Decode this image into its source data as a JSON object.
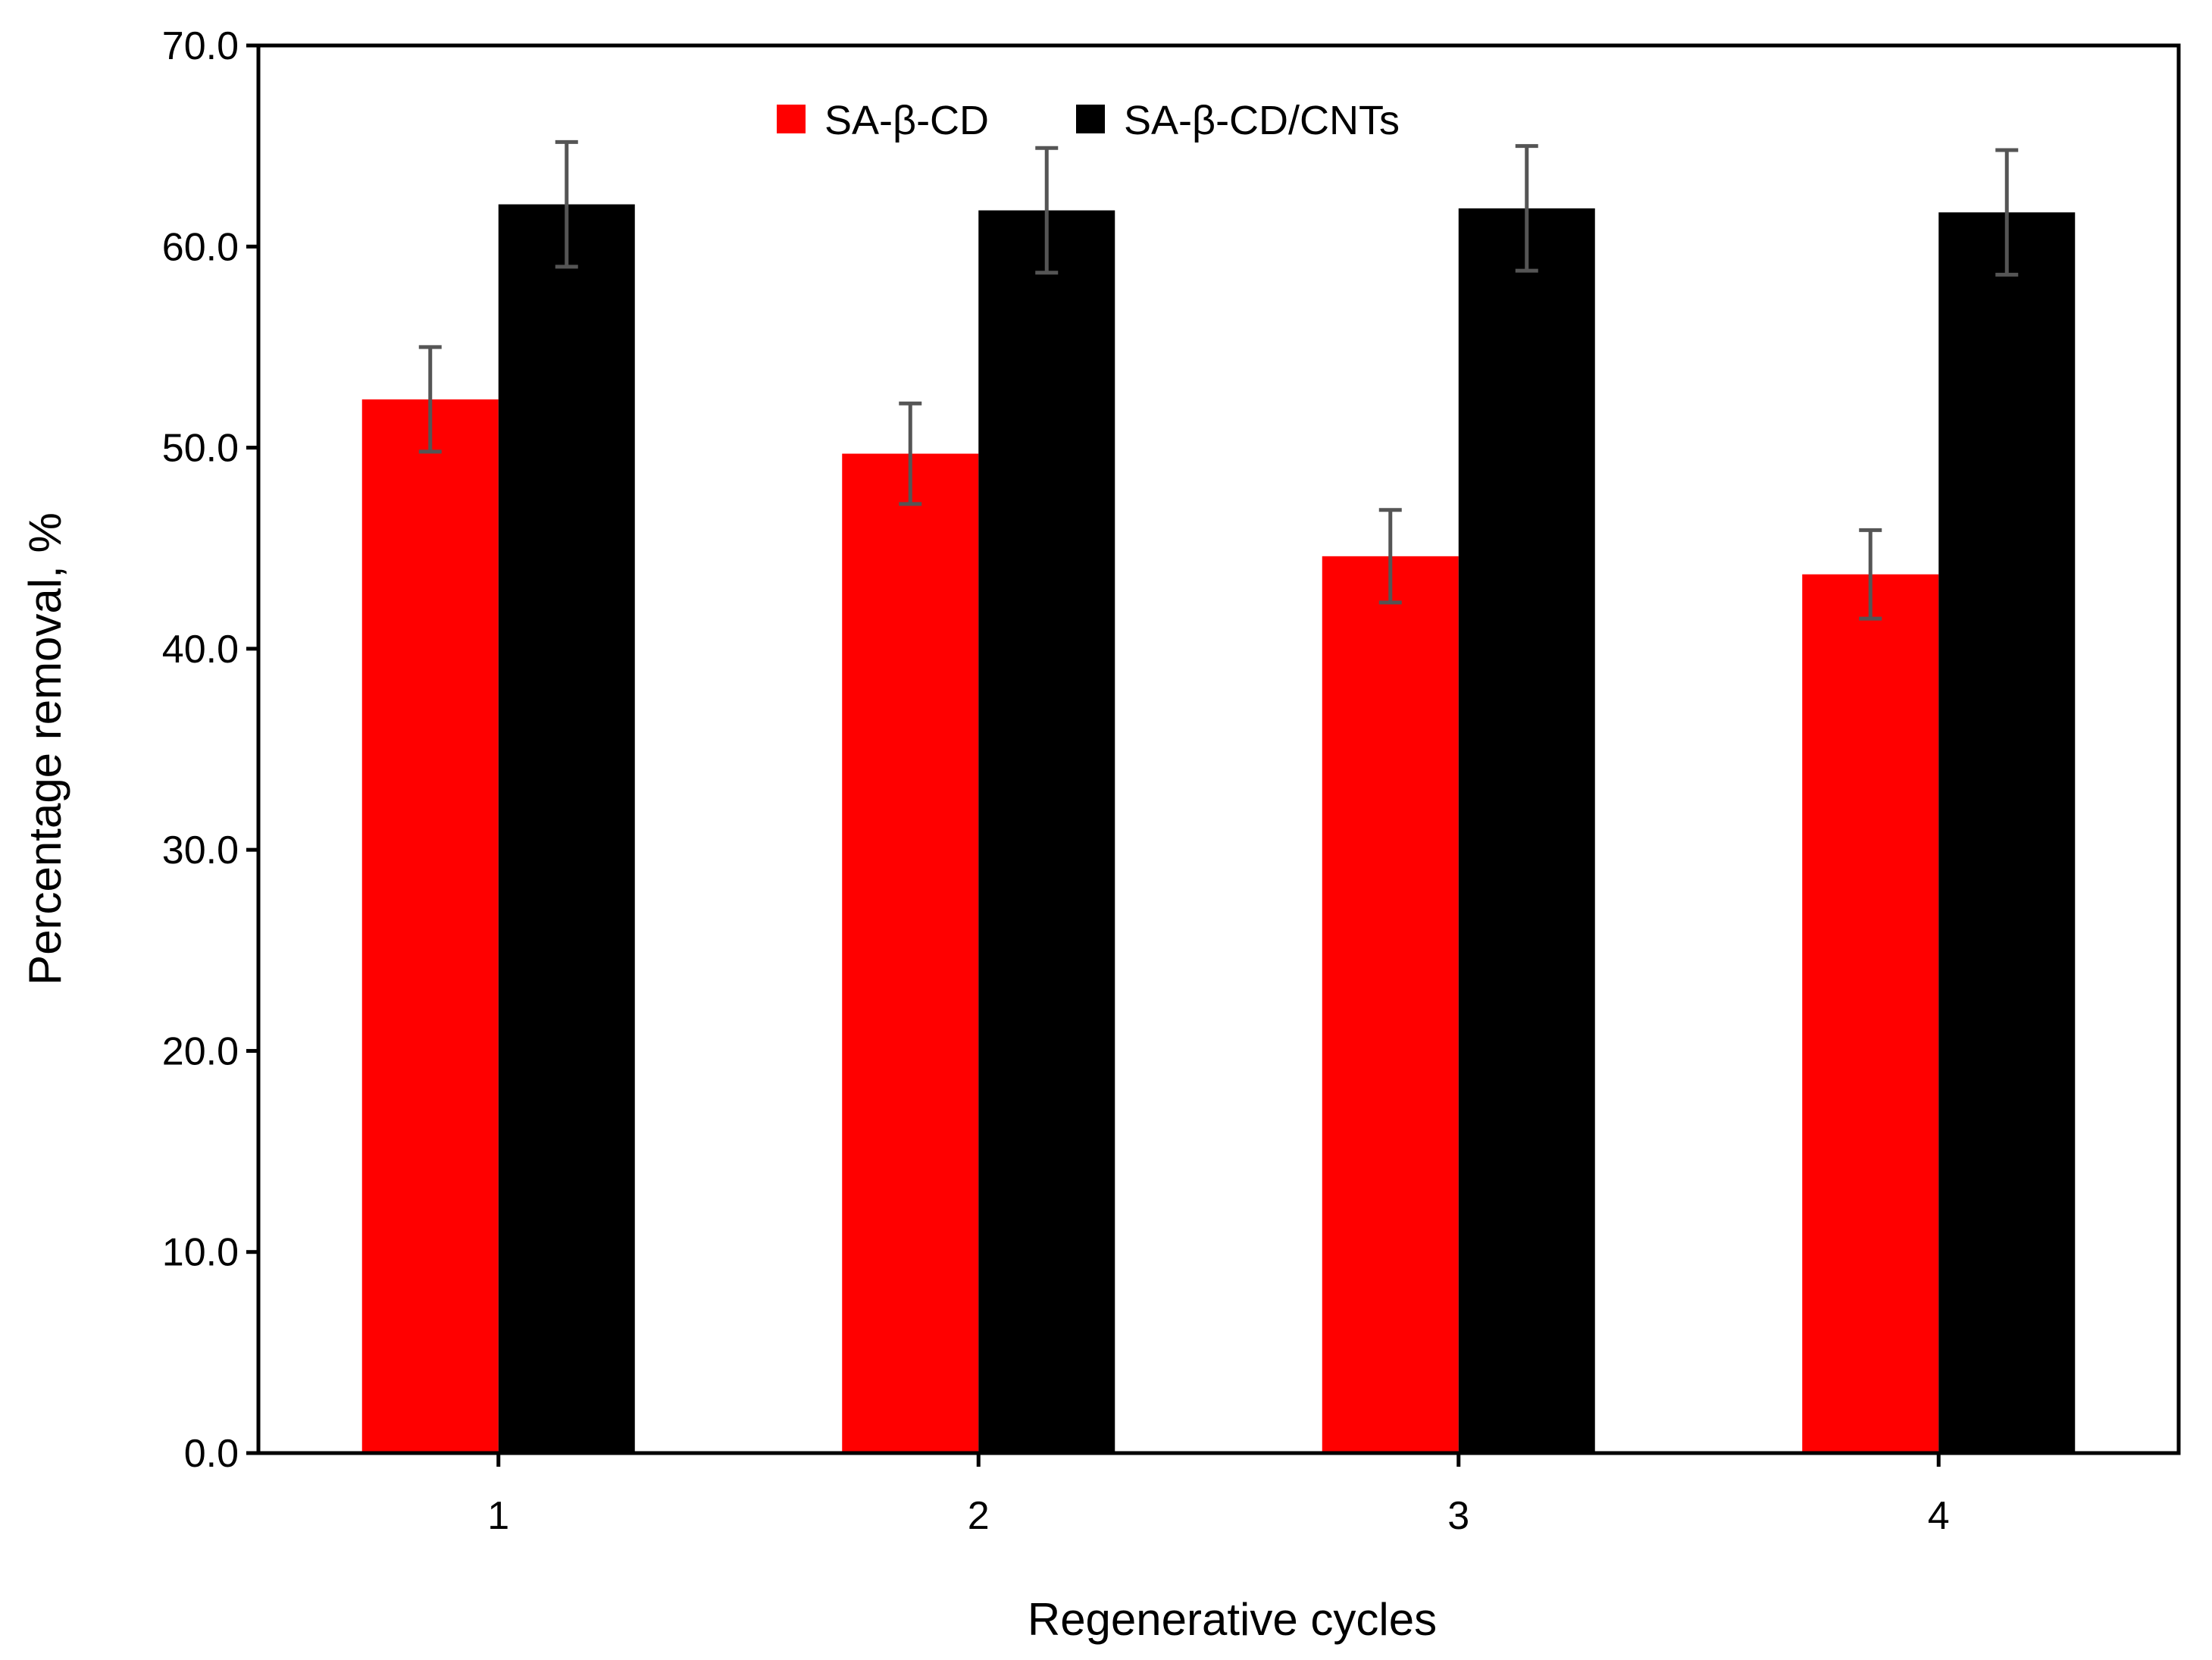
{
  "chart_data": {
    "type": "bar",
    "title": "",
    "xlabel": "Regenerative cycles",
    "ylabel": "Percentage removal, %",
    "categories": [
      "1",
      "2",
      "3",
      "4"
    ],
    "ylim": [
      0,
      70
    ],
    "yticks": [
      0,
      10,
      20,
      30,
      40,
      50,
      60,
      70
    ],
    "ytick_labels": [
      "0.0",
      "10.0",
      "20.0",
      "30.0",
      "40.0",
      "50.0",
      "60.0",
      "70.0"
    ],
    "grid": false,
    "legend_position": "top-center",
    "series": [
      {
        "name": "SA-β-CD",
        "color": "#ff0000",
        "values": [
          52.4,
          49.7,
          44.6,
          43.7
        ],
        "errors": [
          2.6,
          2.5,
          2.3,
          2.2
        ]
      },
      {
        "name": "SA-β-CD/CNTs",
        "color": "#000000",
        "values": [
          62.1,
          61.8,
          61.9,
          61.7
        ],
        "errors": [
          3.1,
          3.1,
          3.1,
          3.1
        ]
      }
    ],
    "error_bar_color": "#555555"
  }
}
